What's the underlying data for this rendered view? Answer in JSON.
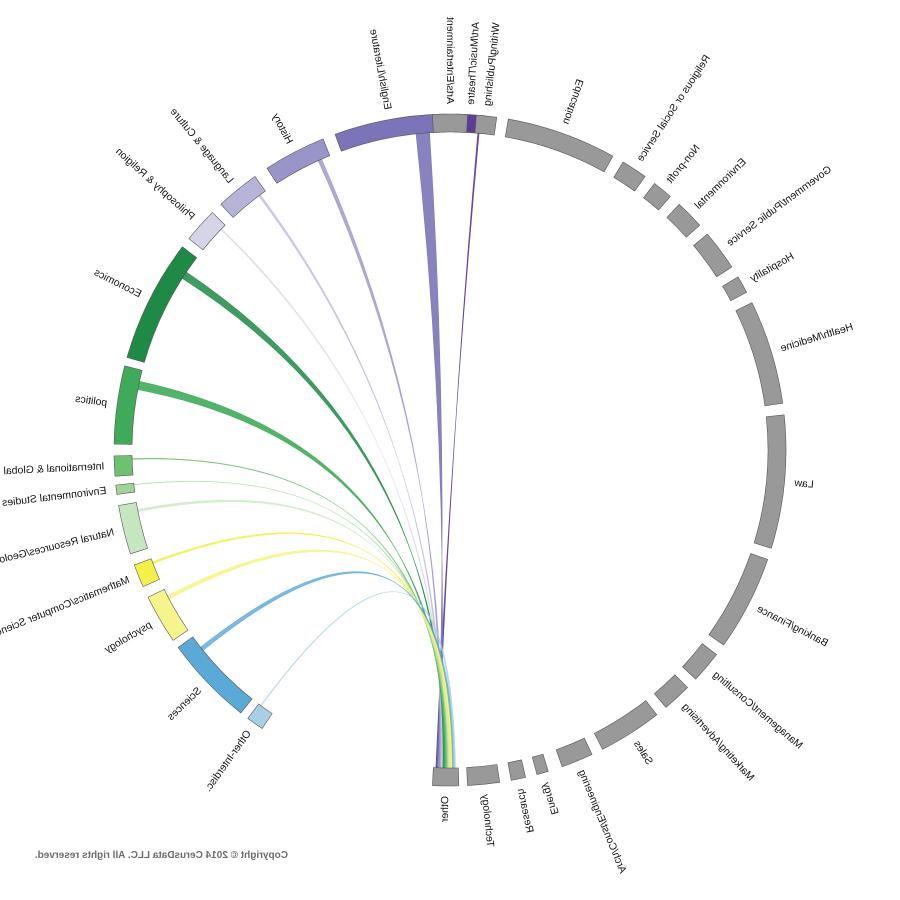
{
  "copyright": "Copyright © 2014 CerusData LLC.  All rights reserved.",
  "colors": {
    "major_purple": [
      "#5e3c99",
      "#7b74b8",
      "#9a95c8",
      "#b7b4da",
      "#d6d5e8"
    ],
    "major_green": [
      "#1e8a45",
      "#3fab5a",
      "#6fc070",
      "#9fd49a",
      "#c6e6bf"
    ],
    "major_yellow": [
      "#f3f04a",
      "#f6f48c"
    ],
    "major_blue": [
      "#5aa9d6",
      "#a9cfe6"
    ],
    "career_gray": "#999999"
  },
  "majors": [
    {
      "label": "Art/Music/Theatre",
      "color": "#5e3c99"
    },
    {
      "label": "English/Literature",
      "color": "#7b74b8"
    },
    {
      "label": "History",
      "color": "#9a95c8"
    },
    {
      "label": "Language & Culture",
      "color": "#b7b4da"
    },
    {
      "label": "Philosophy & Religion",
      "color": "#d6d5e8"
    },
    {
      "label": "Economics",
      "color": "#1e8a45"
    },
    {
      "label": "politics",
      "color": "#3fab5a"
    },
    {
      "label": "International & Global Studies",
      "color": "#6fc070"
    },
    {
      "label": "Environmental Studies",
      "color": "#9fd49a"
    },
    {
      "label": "Natural Resources/Geology/Forestry",
      "color": "#c6e6bf"
    },
    {
      "label": "Mathematics/Computer Science",
      "color": "#f3f04a"
    },
    {
      "label": "psychology",
      "color": "#f6f48c"
    },
    {
      "label": "Sciences",
      "color": "#5aa9d6"
    },
    {
      "label": "Other-Interdisc.",
      "color": "#a9cfe6"
    }
  ],
  "careers": [
    {
      "label": "Other"
    },
    {
      "label": "Technology"
    },
    {
      "label": "Research"
    },
    {
      "label": "Energy"
    },
    {
      "label": "Arch/Const/Engineering"
    },
    {
      "label": "Sales"
    },
    {
      "label": "Marketing/Advertising"
    },
    {
      "label": "Management/Consulting"
    },
    {
      "label": "Banking/Finance"
    },
    {
      "label": "Law"
    },
    {
      "label": "Health/Medicine"
    },
    {
      "label": "Hospitality"
    },
    {
      "label": "Government/Public Service"
    },
    {
      "label": "Environmental"
    },
    {
      "label": "Non-profit"
    },
    {
      "label": "Religious or Social Service"
    },
    {
      "label": "Education"
    },
    {
      "label": "Writing/Publishing"
    },
    {
      "label": "Arts/Entertainment"
    }
  ]
}
